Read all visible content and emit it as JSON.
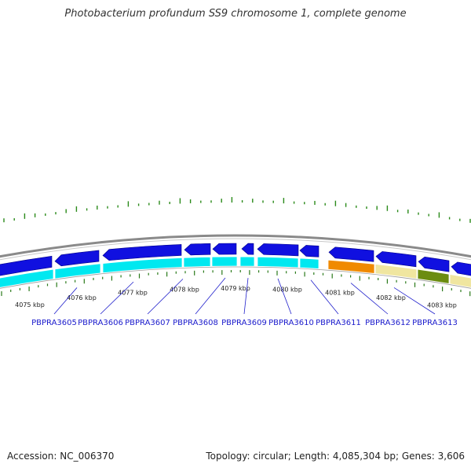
{
  "title": "Photobacterium profundum SS9 chromosome 1, complete genome",
  "accession_line": "Accession: NC_006370",
  "summary_line": "Topology: circular; Length: 4,085,304 bp; Genes: 3,606",
  "colors": {
    "title": "#333333",
    "backbone": "#8a8a8a",
    "gene_forward": "#1010e0",
    "cds_band": "#00e8f0",
    "orange_feature": "#f08a00",
    "khaki_feature": "#f0e6a0",
    "olive_feature": "#6b8c10",
    "gc_skew": "#2a8a1a",
    "ticks": "#2a7a1a",
    "label_text": "#1a1acc",
    "label_lines": "#2020cc"
  },
  "scale_labels": [
    "4075 kbp",
    "4076 kbp",
    "4077 kbp",
    "4078 kbp",
    "4079 kbp",
    "4080 kbp",
    "4081 kbp",
    "4082 kbp",
    "4083 kbp"
  ],
  "gene_labels": [
    "PBPRA3605",
    "PBPRA3606",
    "PBPRA3607",
    "PBPRA3608",
    "PBPRA3609",
    "PBPRA3610",
    "PBPRA3611",
    "PBPRA3612",
    "PBPRA3613"
  ]
}
